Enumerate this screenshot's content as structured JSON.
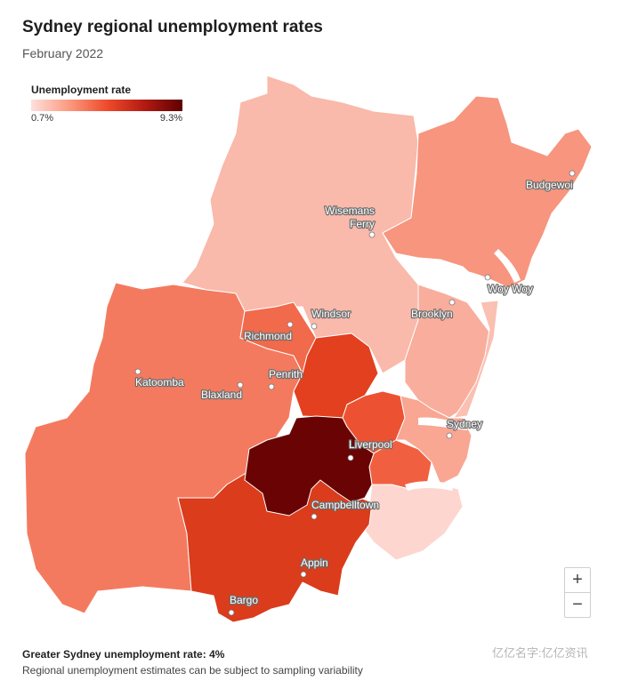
{
  "header": {
    "title": "Sydney regional unemployment rates",
    "subtitle": "February 2022"
  },
  "legend": {
    "title": "Unemployment rate",
    "min_label": "0.7%",
    "max_label": "9.3%",
    "min_value": 0.7,
    "max_value": 9.3,
    "color_min": "#fde0dc",
    "color_max": "#5e0000"
  },
  "places": {
    "budgewoi": "Budgewoi",
    "wisemans_ferry_1": "Wisemans",
    "wisemans_ferry_2": "Ferry",
    "woy_woy": "Woy Woy",
    "brooklyn": "Brooklyn",
    "windsor": "Windsor",
    "richmond": "Richmond",
    "katoomba": "Katoomba",
    "blaxland": "Blaxland",
    "penrith": "Penrith",
    "sydney": "Sydney",
    "liverpool": "Liverpool",
    "campbelltown": "Campbelltown",
    "appin": "Appin",
    "bargo": "Bargo"
  },
  "zoom": {
    "in": "+",
    "out": "−"
  },
  "footer": {
    "summary": "Greater Sydney unemployment rate: 4%",
    "note": "Regional unemployment estimates can be subject to sampling variability",
    "watermark": "亿亿名字:亿亿资讯"
  },
  "colors": {
    "water": "#ffffff",
    "very_light": "#fce0db",
    "light": "#f9b4a6",
    "medium_light": "#f7957e",
    "medium": "#f47a5f",
    "orange_red": "#f06040",
    "red": "#e2401f",
    "dark_red": "#da3c1c",
    "darkest": "#6a0404"
  }
}
